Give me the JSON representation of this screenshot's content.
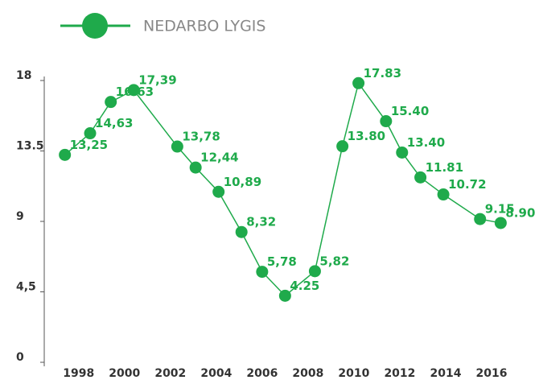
{
  "chart_data": {
    "type": "line",
    "series": [
      {
        "name": "NEDARBO LYGIS",
        "color": "#1faa4b",
        "values": [
          13.25,
          14.63,
          16.63,
          17.39,
          13.78,
          12.44,
          10.89,
          8.32,
          5.78,
          4.25,
          5.82,
          13.8,
          17.83,
          15.4,
          13.4,
          11.81,
          10.72,
          9.15,
          8.9
        ],
        "value_labels": [
          "13,25",
          "14,63",
          "16.63",
          "17,39",
          "13,78",
          "12,44",
          "10,89",
          "8,32",
          "5,78",
          "4.25",
          "5,82",
          "13.80",
          "17.83",
          "15.40",
          "13.40",
          "11.81",
          "10.72",
          "9.15",
          "8.90"
        ]
      }
    ],
    "x": [
      1997.4,
      1998.5,
      1999.4,
      2000.4,
      2002.3,
      2003.1,
      2004.1,
      2005.1,
      2006.0,
      2007.0,
      2008.3,
      2009.5,
      2010.2,
      2011.4,
      2012.1,
      2012.9,
      2013.9,
      2015.5,
      2016.4
    ],
    "xlim": [
      1996.5,
      2018
    ],
    "xticks": [
      1998,
      2000,
      2002,
      2004,
      2006,
      2008,
      2010,
      2012,
      2014,
      2016
    ],
    "ylim": [
      0,
      18
    ],
    "yticks": [
      0,
      {
        "value": 4.5,
        "label": "4,5"
      },
      9,
      13.5,
      18
    ]
  }
}
